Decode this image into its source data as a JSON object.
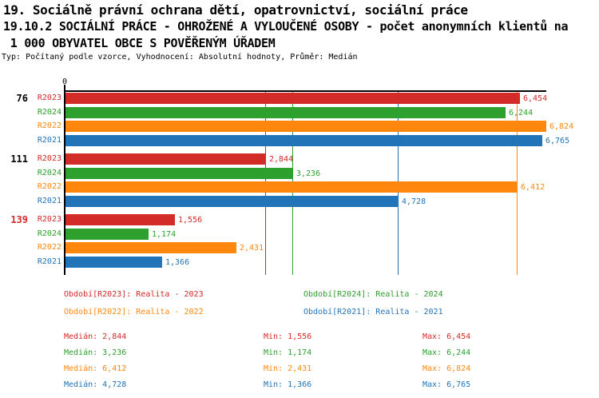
{
  "header": {
    "title_line1": "19. Sociálně právní ochrana dětí, opatrovnictví, sociální práce",
    "title_line2": "19.10.2 SOCIÁLNÍ PRÁCE - OHROŽENÉ A VYLOUČENÉ OSOBY - počet anonymních klientů na",
    "title_line3": " 1 000 OBYVATEL OBCE S POVĚŘENÝM ÚŘADEM",
    "meta_line": "Typ: Počítaný podle vzorce, Vyhodnocení: Absolutní hodnoty, Průměr: Medián"
  },
  "colors": {
    "R2023": "#d32b27",
    "R2024": "#2da02d",
    "R2022": "#ff870e",
    "R2021": "#2274b8",
    "axis": "#000000",
    "group_label": "#000000",
    "highlight_group_label": "#d32b27"
  },
  "chart_data": {
    "type": "bar",
    "orientation": "horizontal",
    "title": "19.10.2 SOCIÁLNÍ PRÁCE - OHROŽENÉ A VYLOUČENÉ OSOBY - počet anonymních klientů na 1 000 OBYVATEL OBCE S POVĚŘENÝM ÚŘADEM",
    "axis": {
      "min": 0,
      "max": 6824,
      "origin_label": "0"
    },
    "series_order": [
      "R2023",
      "R2024",
      "R2022",
      "R2021"
    ],
    "categories": [
      "76",
      "111",
      "139"
    ],
    "groups": [
      {
        "label": "76",
        "highlight": false,
        "bars": [
          {
            "series": "R2023",
            "value": 6454,
            "display": "6,454"
          },
          {
            "series": "R2024",
            "value": 6244,
            "display": "6,244"
          },
          {
            "series": "R2022",
            "value": 6824,
            "display": "6,824"
          },
          {
            "series": "R2021",
            "value": 6765,
            "display": "6,765"
          }
        ]
      },
      {
        "label": "111",
        "highlight": false,
        "bars": [
          {
            "series": "R2023",
            "value": 2844,
            "display": "2,844"
          },
          {
            "series": "R2024",
            "value": 3236,
            "display": "3,236"
          },
          {
            "series": "R2022",
            "value": 6412,
            "display": "6,412"
          },
          {
            "series": "R2021",
            "value": 4728,
            "display": "4,728"
          }
        ]
      },
      {
        "label": "139",
        "highlight": true,
        "bars": [
          {
            "series": "R2023",
            "value": 1556,
            "display": "1,556"
          },
          {
            "series": "R2024",
            "value": 1174,
            "display": "1,174"
          },
          {
            "series": "R2022",
            "value": 2431,
            "display": "2,431"
          },
          {
            "series": "R2021",
            "value": 1366,
            "display": "1,366"
          }
        ]
      }
    ],
    "median_lines": [
      {
        "series": "R2023",
        "value": 2844
      },
      {
        "series": "R2024",
        "value": 3236
      },
      {
        "series": "R2022",
        "value": 6412
      },
      {
        "series": "R2021",
        "value": 4728
      }
    ]
  },
  "legend": {
    "items": [
      {
        "series": "R2023",
        "text": "Období[R2023]: Realita - 2023"
      },
      {
        "series": "R2024",
        "text": "Období[R2024]: Realita - 2024"
      },
      {
        "series": "R2022",
        "text": "Období[R2022]: Realita - 2022"
      },
      {
        "series": "R2021",
        "text": "Období[R2021]: Realita - 2021"
      }
    ]
  },
  "stats": {
    "rows": [
      {
        "series": "R2023",
        "median": "Medián: 2,844",
        "min": "Min: 1,556",
        "max": "Max: 6,454"
      },
      {
        "series": "R2024",
        "median": "Medián: 3,236",
        "min": "Min: 1,174",
        "max": "Max: 6,244"
      },
      {
        "series": "R2022",
        "median": "Medián: 6,412",
        "min": "Min: 2,431",
        "max": "Max: 6,824"
      },
      {
        "series": "R2021",
        "median": "Medián: 4,728",
        "min": "Min: 1,366",
        "max": "Max: 6,765"
      }
    ]
  }
}
